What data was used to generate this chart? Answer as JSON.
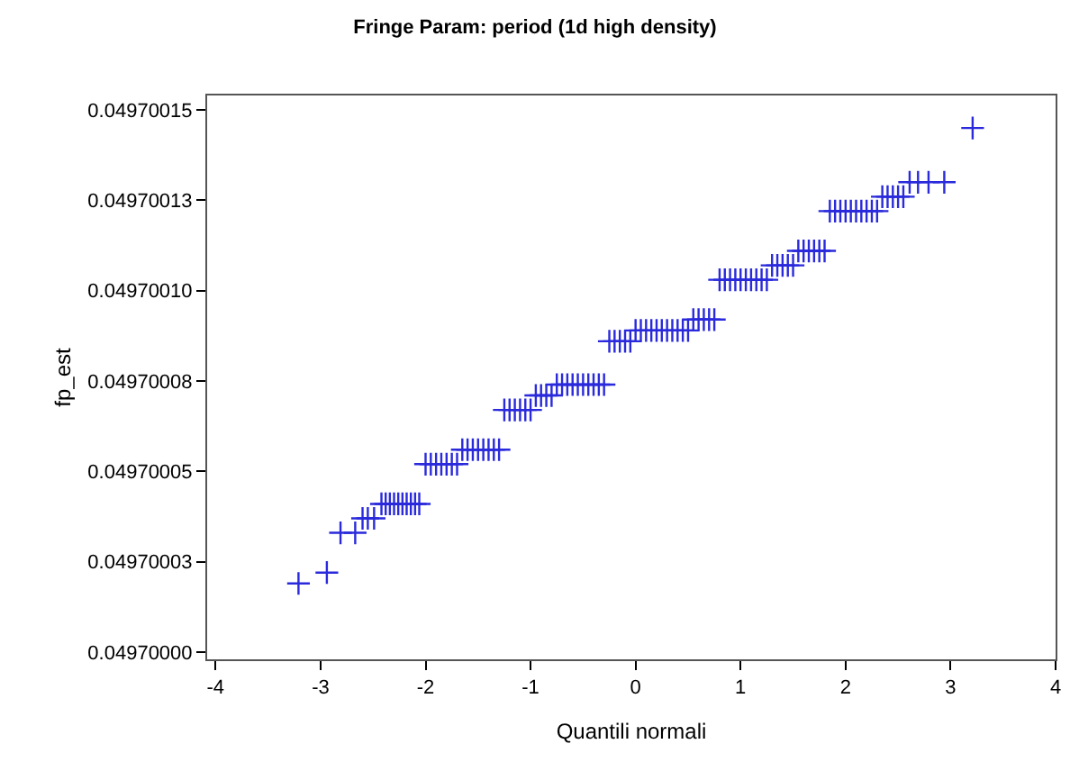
{
  "chart_data": {
    "type": "scatter",
    "title": "Fringe Param: period (1d high density)",
    "xlabel": "Quantili normali",
    "ylabel": "fp_est",
    "color": "#2a2adc",
    "marker": "cross",
    "x": [
      -3.21,
      -2.94,
      -2.81,
      -2.67,
      -2.6,
      -2.55,
      -2.49,
      -2.42,
      -2.38,
      -2.34,
      -2.3,
      -2.26,
      -2.22,
      -2.18,
      -2.14,
      -2.1,
      -2.06,
      -2.0,
      -1.95,
      -1.9,
      -1.85,
      -1.8,
      -1.75,
      -1.7,
      -1.65,
      -1.6,
      -1.55,
      -1.5,
      -1.45,
      -1.4,
      -1.35,
      -1.3,
      -1.25,
      -1.2,
      -1.15,
      -1.1,
      -1.05,
      -1.0,
      -0.95,
      -0.9,
      -0.85,
      -0.8,
      -0.75,
      -0.7,
      -0.65,
      -0.6,
      -0.55,
      -0.5,
      -0.45,
      -0.4,
      -0.35,
      -0.3,
      -0.25,
      -0.2,
      -0.15,
      -0.1,
      -0.05,
      0,
      0.05,
      0.1,
      0.15,
      0.2,
      0.25,
      0.3,
      0.35,
      0.4,
      0.45,
      0.5,
      0.55,
      0.6,
      0.65,
      0.7,
      0.75,
      0.8,
      0.85,
      0.9,
      0.95,
      1.0,
      1.05,
      1.1,
      1.15,
      1.2,
      1.25,
      1.3,
      1.35,
      1.4,
      1.45,
      1.5,
      1.55,
      1.6,
      1.65,
      1.7,
      1.75,
      1.8,
      1.85,
      1.9,
      1.95,
      2.0,
      2.05,
      2.1,
      2.15,
      2.2,
      2.25,
      2.3,
      2.35,
      2.4,
      2.45,
      2.5,
      2.55,
      2.61,
      2.69,
      2.79,
      2.94,
      3.21
    ],
    "values": [
      0.049700019,
      0.049700022,
      0.049700033,
      0.049700033,
      0.049700037,
      0.049700037,
      0.049700037,
      0.049700041,
      0.049700041,
      0.049700041,
      0.049700041,
      0.049700041,
      0.049700041,
      0.049700041,
      0.049700041,
      0.049700041,
      0.049700041,
      0.049700052,
      0.049700052,
      0.049700052,
      0.049700052,
      0.049700052,
      0.049700052,
      0.049700052,
      0.049700056,
      0.049700056,
      0.049700056,
      0.049700056,
      0.049700056,
      0.049700056,
      0.049700056,
      0.049700056,
      0.049700067,
      0.049700067,
      0.049700067,
      0.049700067,
      0.049700067,
      0.049700067,
      0.049700071,
      0.049700071,
      0.049700071,
      0.049700071,
      0.049700074,
      0.049700074,
      0.049700074,
      0.049700074,
      0.049700074,
      0.049700074,
      0.049700074,
      0.049700074,
      0.049700074,
      0.049700074,
      0.049700086,
      0.049700086,
      0.049700086,
      0.049700086,
      0.049700086,
      0.049700089,
      0.049700089,
      0.049700089,
      0.049700089,
      0.049700089,
      0.049700089,
      0.049700089,
      0.049700089,
      0.049700089,
      0.049700089,
      0.049700089,
      0.049700092,
      0.049700092,
      0.049700092,
      0.049700092,
      0.049700092,
      0.049700103,
      0.049700103,
      0.049700103,
      0.049700103,
      0.049700103,
      0.049700103,
      0.049700103,
      0.049700103,
      0.049700103,
      0.049700103,
      0.049700107,
      0.049700107,
      0.049700107,
      0.049700107,
      0.049700107,
      0.049700111,
      0.049700111,
      0.049700111,
      0.049700111,
      0.049700111,
      0.049700111,
      0.049700122,
      0.049700122,
      0.049700122,
      0.049700122,
      0.049700122,
      0.049700122,
      0.049700122,
      0.049700122,
      0.049700122,
      0.049700122,
      0.049700126,
      0.049700126,
      0.049700126,
      0.049700126,
      0.049700126,
      0.04970013,
      0.04970013,
      0.04970013,
      0.04970013,
      0.049700145
    ],
    "xlim": [
      -4.08,
      4
    ],
    "xticks": [
      -4,
      -3,
      -2,
      -1,
      0,
      1,
      2,
      3,
      4
    ],
    "ylim": [
      0.049699998,
      0.049700154
    ],
    "yticks": [
      {
        "value": 0.0497,
        "label": "0.04970000"
      },
      {
        "value": 0.049700025,
        "label": "0.04970003"
      },
      {
        "value": 0.04970005,
        "label": "0.04970005"
      },
      {
        "value": 0.049700075,
        "label": "0.04970008"
      },
      {
        "value": 0.0497001,
        "label": "0.04970010"
      },
      {
        "value": 0.049700125,
        "label": "0.04970013"
      },
      {
        "value": 0.04970015,
        "label": "0.04970015"
      }
    ]
  }
}
